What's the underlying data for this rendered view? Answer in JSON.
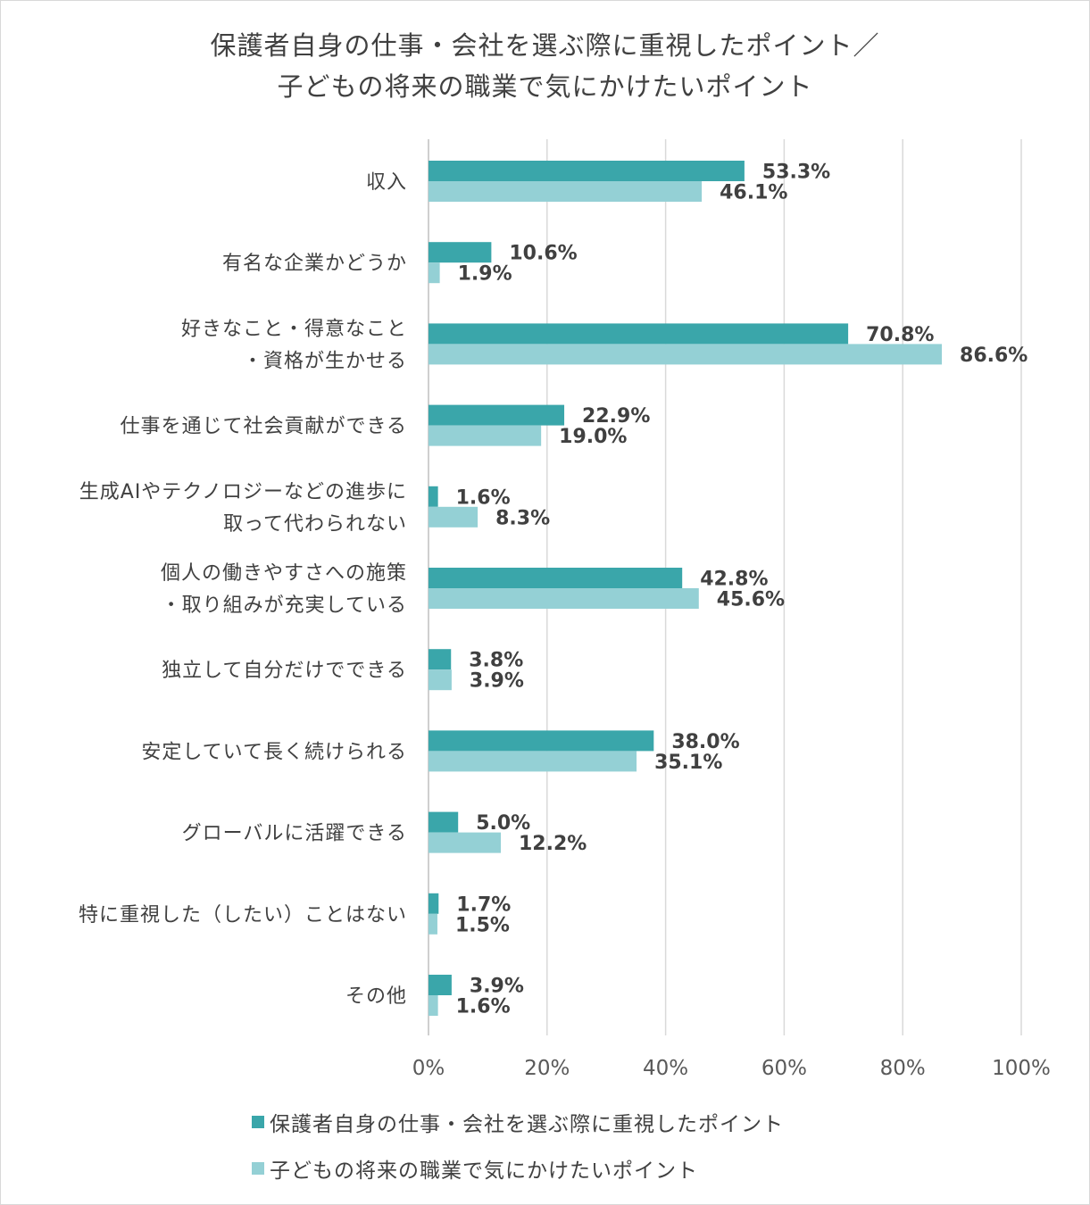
{
  "chart_data": {
    "type": "bar",
    "orientation": "horizontal",
    "title_lines": [
      "保護者自身の仕事・会社を選ぶ際に重視したポイント／",
      "子どもの将来の職業で気にかけたいポイント"
    ],
    "categories": [
      [
        "収入"
      ],
      [
        "有名な企業かどうか"
      ],
      [
        "好きなこと・得意なこと",
        "・資格が生かせる"
      ],
      [
        "仕事を通じて社会貢献ができる"
      ],
      [
        "生成AIやテクノロジーなどの進歩に",
        "取って代わられない"
      ],
      [
        "個人の働きやすさへの施策",
        "・取り組みが充実している"
      ],
      [
        "独立して自分だけでできる"
      ],
      [
        "安定していて長く続けられる"
      ],
      [
        "グローバルに活躍できる"
      ],
      [
        "特に重視した（したい）ことはない"
      ],
      [
        "その他"
      ]
    ],
    "series": [
      {
        "name": "保護者自身の仕事・会社を選ぶ際に重視したポイント",
        "color": "#3aa6aa",
        "values": [
          53.3,
          10.6,
          70.8,
          22.9,
          1.6,
          42.8,
          3.8,
          38.0,
          5.0,
          1.7,
          3.9
        ],
        "labels": [
          "53.3%",
          "10.6%",
          "70.8%",
          "22.9%",
          "1.6%",
          "42.8%",
          "3.8%",
          "38.0%",
          "5.0%",
          "1.7%",
          "3.9%"
        ]
      },
      {
        "name": "子どもの将来の職業で気にかけたいポイント",
        "color": "#94d0d5",
        "values": [
          46.1,
          1.9,
          86.6,
          19.0,
          8.3,
          45.6,
          3.9,
          35.1,
          12.2,
          1.5,
          1.6
        ],
        "labels": [
          "46.1%",
          "1.9%",
          "86.6%",
          "19.0%",
          "8.3%",
          "45.6%",
          "3.9%",
          "35.1%",
          "12.2%",
          "1.5%",
          "1.6%"
        ]
      }
    ],
    "xlim": [
      0,
      100
    ],
    "x_ticks": [
      0,
      20,
      40,
      60,
      80,
      100
    ],
    "x_tick_labels": [
      "0%",
      "20%",
      "40%",
      "60%",
      "80%",
      "100%"
    ],
    "grid": true,
    "legend_position": "bottom",
    "gridline_color": "#d9d9d9",
    "axis_line_color": "#bfbfbf"
  }
}
